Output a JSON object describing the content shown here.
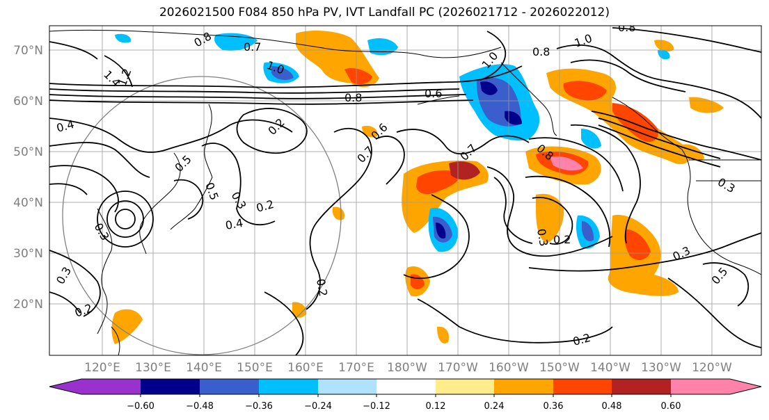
{
  "title": "2026021500 F084 850 hPa PV, IVT Landfall PC (2026021712 - 2026022012)",
  "axes": {
    "lat_labels": [
      "70°N",
      "60°N",
      "50°N",
      "40°N",
      "30°N",
      "20°N"
    ],
    "lon_labels": [
      "120°E",
      "130°E",
      "140°E",
      "150°E",
      "160°E",
      "170°E",
      "180°W",
      "170°W",
      "160°W",
      "150°W",
      "140°W",
      "130°W",
      "120°W"
    ]
  },
  "contour_labels": [
    "0.8",
    "0.7",
    "1.0",
    "1.2",
    "1.4",
    "0.4",
    "0.5",
    "0.2",
    "0.3",
    "0.5",
    "0.6",
    "0.7",
    "0.3",
    "0.4",
    "0.2",
    "0.3",
    "0.2",
    "0.3",
    "0.2",
    "0.7",
    "0.8",
    "0.6",
    "0.8",
    "1.0",
    "0.8",
    "1.0",
    "0.3",
    "0.2",
    "0.3",
    "0.5",
    "0.2",
    "0.8"
  ],
  "colorbar": {
    "ticks": [
      "−0.60",
      "−0.48",
      "−0.36",
      "−0.24",
      "−0.12",
      "0.12",
      "0.24",
      "0.36",
      "0.48",
      "0.60"
    ],
    "colors": [
      "#9932cc",
      "#00008b",
      "#3a5fcd",
      "#00bfff",
      "#b0e2ff",
      "#ffffff",
      "#ffec8b",
      "#ffa500",
      "#ff4500",
      "#b22222",
      "#ff82ab"
    ]
  },
  "colors": {
    "land_line": "#000000",
    "grid": "#999999",
    "label_gray": "#7f7f7f"
  }
}
